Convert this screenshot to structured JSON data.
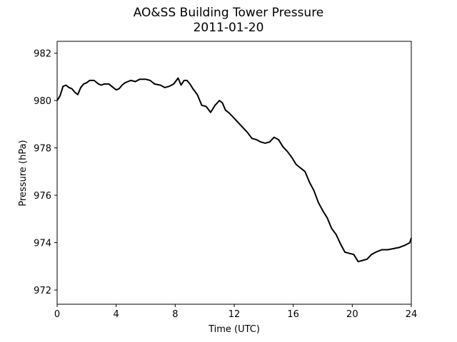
{
  "chart_data": {
    "type": "line",
    "title": "AO&SS Building Tower Pressure",
    "subtitle": "2011-01-20",
    "xlabel": "Time (UTC)",
    "ylabel": "Pressure (hPa)",
    "xlim": [
      0,
      24
    ],
    "ylim": [
      971.4,
      982.5
    ],
    "xticks": [
      0,
      4,
      8,
      12,
      16,
      20,
      24
    ],
    "yticks": [
      972,
      974,
      976,
      978,
      980,
      982
    ],
    "grid": false,
    "legend": "none",
    "series": [
      {
        "color": "#000000",
        "x": [
          0.0,
          0.2,
          0.4,
          0.6,
          0.8,
          1.0,
          1.2,
          1.4,
          1.6,
          1.8,
          2.0,
          2.2,
          2.5,
          2.8,
          3.0,
          3.2,
          3.5,
          3.8,
          4.0,
          4.2,
          4.4,
          4.6,
          4.8,
          5.0,
          5.3,
          5.6,
          6.0,
          6.3,
          6.6,
          7.0,
          7.3,
          7.6,
          7.9,
          8.2,
          8.4,
          8.6,
          8.8,
          9.0,
          9.2,
          9.5,
          9.8,
          10.1,
          10.4,
          10.7,
          11.0,
          11.2,
          11.4,
          11.7,
          12.0,
          12.3,
          12.6,
          12.9,
          13.2,
          13.5,
          13.8,
          14.1,
          14.4,
          14.7,
          15.0,
          15.3,
          15.6,
          15.9,
          16.2,
          16.5,
          16.8,
          17.1,
          17.4,
          17.7,
          18.0,
          18.3,
          18.6,
          18.9,
          19.2,
          19.5,
          19.8,
          20.1,
          20.4,
          20.7,
          21.0,
          21.3,
          21.6,
          22.0,
          22.4,
          22.8,
          23.2,
          23.6,
          23.9,
          24.0
        ],
        "y": [
          980.0,
          980.2,
          980.6,
          980.65,
          980.55,
          980.5,
          980.35,
          980.25,
          980.55,
          980.7,
          980.75,
          980.85,
          980.85,
          980.7,
          980.65,
          980.7,
          980.7,
          980.55,
          980.45,
          980.5,
          980.65,
          980.75,
          980.8,
          980.85,
          980.8,
          980.9,
          980.9,
          980.85,
          980.7,
          980.65,
          980.55,
          980.6,
          980.7,
          980.95,
          980.65,
          980.85,
          980.85,
          980.7,
          980.5,
          980.25,
          979.8,
          979.75,
          979.5,
          979.8,
          980.0,
          979.9,
          979.6,
          979.45,
          979.25,
          979.05,
          978.85,
          978.65,
          978.4,
          978.35,
          978.25,
          978.2,
          978.25,
          978.45,
          978.35,
          978.05,
          977.85,
          977.6,
          977.3,
          977.15,
          977.0,
          976.55,
          976.2,
          975.7,
          975.35,
          975.05,
          974.6,
          974.35,
          973.95,
          973.6,
          973.55,
          973.5,
          973.2,
          973.25,
          973.3,
          973.5,
          973.6,
          973.7,
          973.7,
          973.75,
          973.8,
          973.9,
          974.0,
          974.2
        ]
      }
    ]
  }
}
